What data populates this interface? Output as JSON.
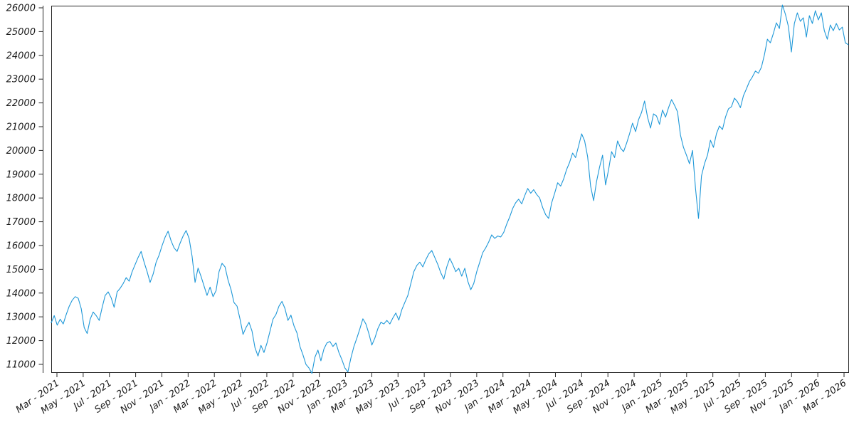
{
  "chart_data": {
    "type": "line",
    "title": "",
    "xlabel": "",
    "ylabel": "",
    "legend": "none",
    "grid": false,
    "background_color": "#ffffff",
    "line_color": "#1f98d8",
    "axis_color": "#262626",
    "tick_text_color": "#1a1a1a",
    "x_start": "Feb 2021",
    "x_end": "Mar 2026",
    "interval": "weekly",
    "ylim": [
      10670,
      26090
    ],
    "y_ticks": [
      11000,
      12000,
      13000,
      14000,
      15000,
      16000,
      17000,
      18000,
      19000,
      20000,
      21000,
      22000,
      23000,
      24000,
      25000,
      26000
    ],
    "x_tick_labels": [
      "Mar - 2021",
      "May - 2021",
      "Jul - 2021",
      "Sep - 2021",
      "Nov - 2021",
      "Jan - 2022",
      "Mar - 2022",
      "May - 2022",
      "Jul - 2022",
      "Sep - 2022",
      "Nov - 2022",
      "Jan - 2023",
      "Mar - 2023",
      "May - 2023",
      "Jul - 2023",
      "Sep - 2023",
      "Nov - 2023",
      "Jan - 2024",
      "Mar - 2024",
      "May - 2024",
      "Jul - 2024",
      "Sep - 2024",
      "Nov - 2024",
      "Jan - 2025",
      "Mar - 2025",
      "May - 2025",
      "Jul - 2025",
      "Sep - 2025",
      "Nov - 2025",
      "Jan - 2026",
      "Mar - 2026"
    ],
    "values": [
      12750,
      13050,
      12650,
      12900,
      12700,
      13100,
      13450,
      13700,
      13850,
      13780,
      13350,
      12550,
      12300,
      12900,
      13200,
      13050,
      12850,
      13400,
      13900,
      14050,
      13800,
      13400,
      14050,
      14200,
      14400,
      14650,
      14500,
      14900,
      15200,
      15500,
      15750,
      15300,
      14900,
      14450,
      14800,
      15300,
      15600,
      16000,
      16350,
      16600,
      16200,
      15900,
      15750,
      16100,
      16400,
      16630,
      16300,
      15550,
      14450,
      15050,
      14700,
      14300,
      13900,
      14250,
      13850,
      14100,
      14900,
      15250,
      15100,
      14550,
      14150,
      13600,
      13450,
      12900,
      12260,
      12550,
      12770,
      12400,
      11700,
      11350,
      11800,
      11500,
      11900,
      12400,
      12900,
      13100,
      13450,
      13650,
      13350,
      12850,
      13070,
      12620,
      12320,
      11750,
      11400,
      11000,
      10850,
      10620,
      11300,
      11600,
      11150,
      11650,
      11900,
      11960,
      11750,
      11900,
      11500,
      11200,
      10850,
      10680,
      11270,
      11750,
      12110,
      12500,
      12920,
      12700,
      12300,
      11810,
      12100,
      12500,
      12770,
      12700,
      12850,
      12700,
      12950,
      13160,
      12860,
      13300,
      13600,
      13900,
      14400,
      14900,
      15160,
      15300,
      15100,
      15400,
      15650,
      15790,
      15500,
      15200,
      14850,
      14590,
      15100,
      15460,
      15200,
      14900,
      15040,
      14710,
      15040,
      14500,
      14140,
      14400,
      14900,
      15300,
      15700,
      15900,
      16150,
      16450,
      16300,
      16400,
      16360,
      16550,
      16900,
      17200,
      17560,
      17800,
      17950,
      17750,
      18100,
      18400,
      18200,
      18350,
      18150,
      18000,
      17600,
      17300,
      17140,
      17800,
      18200,
      18640,
      18500,
      18800,
      19200,
      19500,
      19890,
      19700,
      20200,
      20700,
      20400,
      19740,
      18500,
      17890,
      18700,
      19300,
      19800,
      18550,
      19200,
      19950,
      19700,
      20400,
      20100,
      19950,
      20300,
      20700,
      21150,
      20790,
      21300,
      21600,
      22080,
      21400,
      20940,
      21540,
      21450,
      21100,
      21700,
      21400,
      21800,
      22140,
      21900,
      21630,
      20640,
      20130,
      19800,
      19440,
      20000,
      18400,
      17140,
      18930,
      19440,
      19800,
      20430,
      20130,
      20700,
      21030,
      20880,
      21400,
      21750,
      21840,
      22200,
      22050,
      21800,
      22300,
      22590,
      22900,
      23100,
      23340,
      23250,
      23500,
      24020,
      24680,
      24530,
      24920,
      25370,
      25130,
      26120,
      25730,
      25220,
      24140,
      25340,
      25790,
      25430,
      25580,
      24770,
      25670,
      25340,
      25880,
      25490,
      25790,
      25040,
      24680,
      25280,
      25040,
      25340,
      25070,
      25190,
      24530,
      24450
    ]
  }
}
